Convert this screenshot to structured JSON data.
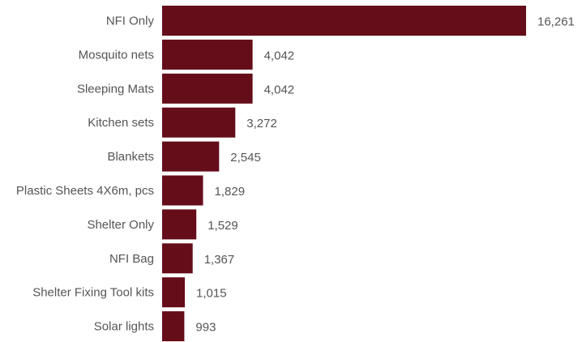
{
  "chart_data": {
    "type": "bar",
    "orientation": "horizontal",
    "categories": [
      "NFI Only",
      "Mosquito nets",
      "Sleeping Mats",
      "Kitchen sets",
      "Blankets",
      "Plastic Sheets 4X6m, pcs",
      "Shelter Only",
      "NFI Bag",
      "Shelter Fixing Tool kits",
      "Solar lights"
    ],
    "values": [
      16261,
      4042,
      4042,
      3272,
      2545,
      1829,
      1529,
      1367,
      1015,
      993
    ],
    "value_labels": [
      "16,261",
      "4,042",
      "4,042",
      "3,272",
      "2,545",
      "1,829",
      "1,529",
      "1,367",
      "1,015",
      "993"
    ],
    "title": "",
    "xlabel": "",
    "ylabel": "",
    "xlim": [
      0,
      16261
    ],
    "grid": false,
    "legend": "none",
    "bar_color": "#650d19",
    "label_color": "#555555"
  }
}
